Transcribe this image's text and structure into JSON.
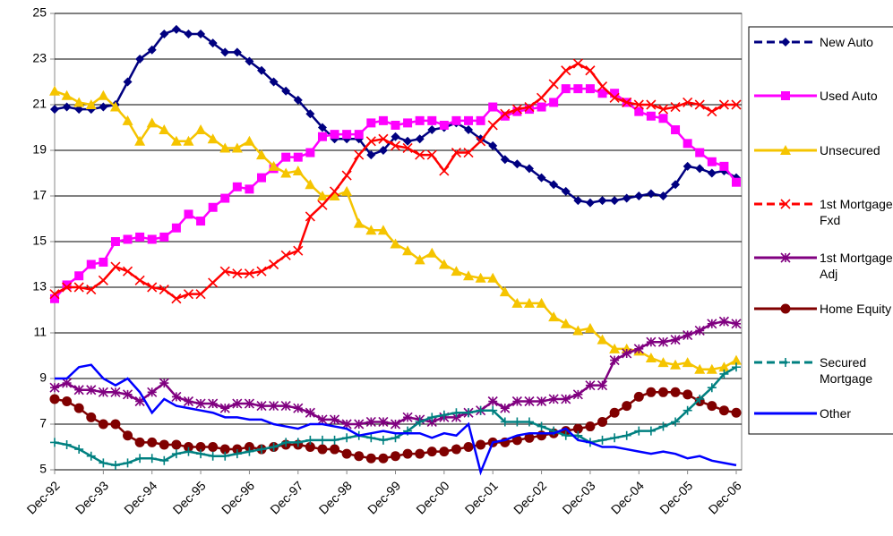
{
  "chart_data": {
    "type": "line",
    "categories": [
      "Dec-92",
      null,
      null,
      null,
      "Dec-93",
      null,
      null,
      null,
      "Dec-94",
      null,
      null,
      null,
      "Dec-95",
      null,
      null,
      null,
      "Dec-96",
      null,
      null,
      null,
      "Dec-97",
      null,
      null,
      null,
      "Dec-98",
      null,
      null,
      null,
      "Dec-99",
      null,
      null,
      null,
      "Dec-00",
      null,
      null,
      null,
      "Dec-01",
      null,
      null,
      null,
      "Dec-02",
      null,
      null,
      null,
      "Dec-03",
      null,
      null,
      null,
      "Dec-04",
      null,
      null,
      null,
      "Dec-05",
      null,
      null,
      null,
      "Dec-06"
    ],
    "ylim": [
      5,
      25
    ],
    "yticks": [
      5,
      7,
      9,
      11,
      13,
      15,
      17,
      19,
      21,
      23,
      25
    ],
    "grid": true,
    "series": [
      {
        "name": "New Auto",
        "color": "#000080",
        "marker": "diamond",
        "values": [
          20.8,
          20.9,
          20.8,
          20.8,
          20.9,
          21.0,
          22.0,
          23.0,
          23.4,
          24.1,
          24.3,
          24.1,
          24.1,
          23.7,
          23.3,
          23.3,
          22.9,
          22.5,
          22.0,
          21.6,
          21.2,
          20.6,
          20.0,
          19.5,
          19.5,
          19.5,
          18.8,
          19.0,
          19.6,
          19.4,
          19.5,
          19.9,
          20.0,
          20.2,
          19.9,
          19.5,
          19.2,
          18.6,
          18.4,
          18.2,
          17.8,
          17.5,
          17.2,
          16.8,
          16.7,
          16.8,
          16.8,
          16.9,
          17.0,
          17.1,
          17.0,
          17.5,
          18.3,
          18.2,
          18.0,
          18.1,
          17.8
        ]
      },
      {
        "name": "Used Auto",
        "color": "#ff00ff",
        "marker": "square",
        "values": [
          12.5,
          13.1,
          13.5,
          14.0,
          14.1,
          15.0,
          15.1,
          15.2,
          15.1,
          15.2,
          15.6,
          16.2,
          15.9,
          16.5,
          16.9,
          17.4,
          17.3,
          17.8,
          18.2,
          18.7,
          18.7,
          18.9,
          19.6,
          19.7,
          19.7,
          19.7,
          20.2,
          20.3,
          20.1,
          20.2,
          20.3,
          20.3,
          20.1,
          20.3,
          20.3,
          20.3,
          20.9,
          20.5,
          20.7,
          20.8,
          20.9,
          21.1,
          21.7,
          21.7,
          21.7,
          21.5,
          21.5,
          21.1,
          20.7,
          20.5,
          20.4,
          19.9,
          19.3,
          18.9,
          18.5,
          18.3,
          17.6
        ]
      },
      {
        "name": "Unsecured",
        "color": "#f5c400",
        "marker": "triangle",
        "values": [
          21.6,
          21.4,
          21.1,
          21.0,
          21.4,
          20.9,
          20.3,
          19.4,
          20.2,
          19.9,
          19.4,
          19.4,
          19.9,
          19.5,
          19.1,
          19.1,
          19.4,
          18.8,
          18.3,
          18.0,
          18.1,
          17.5,
          17.0,
          17.0,
          17.2,
          15.8,
          15.5,
          15.5,
          14.9,
          14.6,
          14.2,
          14.5,
          14.0,
          13.7,
          13.5,
          13.4,
          13.4,
          12.8,
          12.3,
          12.3,
          12.3,
          11.7,
          11.4,
          11.1,
          11.2,
          10.7,
          10.3,
          10.3,
          10.2,
          9.9,
          9.7,
          9.6,
          9.7,
          9.4,
          9.4,
          9.5,
          9.8
        ]
      },
      {
        "name": "1st Mortgage Fxd",
        "color": "#ff0000",
        "marker": "x",
        "values": [
          12.7,
          13.0,
          13.0,
          12.9,
          13.3,
          13.9,
          13.7,
          13.3,
          13.0,
          12.9,
          12.5,
          12.7,
          12.7,
          13.2,
          13.7,
          13.6,
          13.6,
          13.7,
          14.0,
          14.4,
          14.6,
          16.1,
          16.6,
          17.2,
          17.9,
          18.8,
          19.4,
          19.5,
          19.2,
          19.1,
          18.8,
          18.8,
          18.1,
          18.9,
          18.9,
          19.4,
          20.1,
          20.6,
          20.8,
          20.9,
          21.3,
          21.9,
          22.5,
          22.8,
          22.5,
          21.8,
          21.3,
          21.1,
          21.0,
          21.0,
          20.8,
          20.9,
          21.1,
          21.0,
          20.7,
          21.0,
          21.0
        ]
      },
      {
        "name": "1st Mortgage Adj",
        "color": "#800080",
        "marker": "asterisk",
        "values": [
          8.6,
          8.8,
          8.5,
          8.5,
          8.4,
          8.4,
          8.3,
          8.0,
          8.4,
          8.8,
          8.2,
          8.0,
          7.9,
          7.9,
          7.7,
          7.9,
          7.9,
          7.8,
          7.8,
          7.8,
          7.7,
          7.5,
          7.2,
          7.2,
          7.0,
          7.0,
          7.1,
          7.1,
          7.0,
          7.3,
          7.2,
          7.1,
          7.3,
          7.3,
          7.5,
          7.6,
          8.0,
          7.7,
          8.0,
          8.0,
          8.0,
          8.1,
          8.1,
          8.3,
          8.7,
          8.7,
          9.8,
          10.1,
          10.3,
          10.6,
          10.6,
          10.7,
          10.9,
          11.1,
          11.4,
          11.5,
          11.4
        ]
      },
      {
        "name": "Home Equity",
        "color": "#800000",
        "marker": "circle",
        "values": [
          8.1,
          8.0,
          7.7,
          7.3,
          7.0,
          7.0,
          6.5,
          6.2,
          6.2,
          6.1,
          6.1,
          6.0,
          6.0,
          6.0,
          5.9,
          5.9,
          6.0,
          5.9,
          6.0,
          6.1,
          6.1,
          6.0,
          5.9,
          5.9,
          5.7,
          5.6,
          5.5,
          5.5,
          5.6,
          5.7,
          5.7,
          5.8,
          5.8,
          5.9,
          6.0,
          6.1,
          6.2,
          6.2,
          6.3,
          6.4,
          6.5,
          6.6,
          6.7,
          6.8,
          6.9,
          7.1,
          7.5,
          7.8,
          8.2,
          8.4,
          8.4,
          8.4,
          8.3,
          8.0,
          7.8,
          7.6,
          7.5
        ]
      },
      {
        "name": "Secured Mortgage",
        "color": "#008080",
        "marker": "plus",
        "values": [
          6.2,
          6.1,
          5.9,
          5.6,
          5.3,
          5.2,
          5.3,
          5.5,
          5.5,
          5.4,
          5.7,
          5.8,
          5.7,
          5.6,
          5.6,
          5.7,
          5.8,
          5.9,
          6.0,
          6.2,
          6.2,
          6.3,
          6.3,
          6.3,
          6.4,
          6.5,
          6.4,
          6.3,
          6.4,
          6.7,
          7.1,
          7.3,
          7.4,
          7.5,
          7.5,
          7.6,
          7.6,
          7.1,
          7.1,
          7.1,
          6.9,
          6.7,
          6.5,
          6.5,
          6.2,
          6.3,
          6.4,
          6.5,
          6.7,
          6.7,
          6.9,
          7.1,
          7.6,
          8.1,
          8.6,
          9.2,
          9.5
        ]
      },
      {
        "name": "Other",
        "color": "#0000ff",
        "marker": "none",
        "values": [
          9.0,
          9.0,
          9.5,
          9.6,
          9.0,
          8.7,
          9.0,
          8.4,
          7.5,
          8.1,
          7.8,
          7.7,
          7.6,
          7.5,
          7.3,
          7.3,
          7.2,
          7.2,
          7.0,
          6.9,
          6.8,
          7.0,
          7.0,
          6.9,
          6.8,
          6.5,
          6.6,
          6.7,
          6.6,
          6.6,
          6.6,
          6.4,
          6.6,
          6.5,
          7.0,
          4.9,
          6.2,
          6.3,
          6.5,
          6.6,
          6.6,
          6.6,
          6.8,
          6.3,
          6.2,
          6.0,
          6.0,
          5.9,
          5.8,
          5.7,
          5.8,
          5.7,
          5.5,
          5.6,
          5.4,
          5.3,
          5.2
        ]
      }
    ]
  }
}
